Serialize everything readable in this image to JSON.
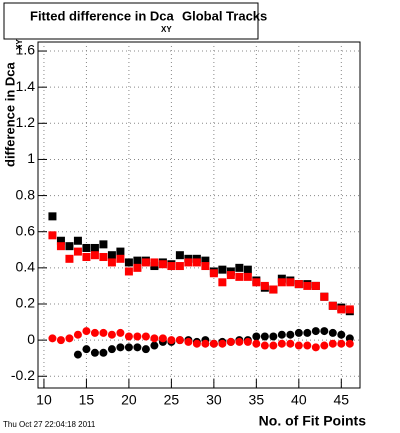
{
  "chart_data": {
    "type": "scatter",
    "title": "Fitted difference in Dca",
    "title_subscript": "XY",
    "title_suffix": "Global Tracks",
    "y_label": "difference in Dca",
    "y_label_subscript": "XY",
    "x_label": "No. of Fit Points",
    "timestamp": "Thu Oct 27 22:04:18 2011",
    "x": [
      11,
      12,
      13,
      14,
      15,
      16,
      17,
      18,
      19,
      20,
      21,
      22,
      23,
      24,
      25,
      26,
      27,
      28,
      29,
      30,
      31,
      32,
      33,
      34,
      35,
      36,
      37,
      38,
      39,
      40,
      41,
      42,
      43,
      44,
      45,
      46
    ],
    "series": [
      {
        "color": "#000000",
        "marker": "square",
        "values": [
          0.685,
          0.55,
          0.52,
          0.55,
          0.51,
          0.51,
          0.53,
          0.47,
          0.49,
          0.43,
          0.44,
          0.44,
          0.41,
          0.43,
          0.42,
          0.47,
          0.45,
          0.45,
          0.44,
          0.38,
          0.39,
          0.38,
          0.4,
          0.39,
          0.33,
          0.29,
          0.28,
          0.34,
          0.33,
          0.31,
          0.31,
          0.3,
          0.24,
          0.19,
          0.18,
          0.16
        ]
      },
      {
        "color": "#ff0000",
        "marker": "square",
        "values": [
          0.58,
          0.52,
          0.45,
          0.49,
          0.46,
          0.47,
          0.46,
          0.43,
          0.45,
          0.38,
          0.4,
          0.43,
          0.43,
          0.42,
          0.41,
          0.41,
          0.43,
          0.43,
          0.41,
          0.37,
          0.32,
          0.36,
          0.35,
          0.35,
          0.32,
          0.3,
          0.28,
          0.32,
          0.32,
          0.31,
          0.3,
          0.3,
          0.24,
          0.19,
          0.17,
          0.17
        ]
      },
      {
        "color": "#000000",
        "marker": "circle",
        "values": [
          null,
          null,
          null,
          -0.08,
          -0.05,
          -0.07,
          -0.07,
          -0.05,
          -0.04,
          -0.04,
          -0.04,
          -0.05,
          -0.03,
          -0.01,
          -0.01,
          0.0,
          0.0,
          -0.01,
          0.0,
          -0.02,
          -0.01,
          -0.01,
          0.0,
          0.0,
          0.02,
          0.02,
          0.02,
          0.03,
          0.03,
          0.04,
          0.04,
          0.05,
          0.05,
          0.04,
          0.03,
          0.01
        ]
      },
      {
        "color": "#ff0000",
        "marker": "circle",
        "values": [
          0.01,
          0.0,
          0.01,
          0.03,
          0.05,
          0.04,
          0.04,
          0.03,
          0.04,
          0.02,
          0.02,
          0.02,
          0.01,
          0.01,
          0.0,
          0.0,
          -0.01,
          -0.02,
          -0.02,
          -0.02,
          -0.02,
          -0.01,
          -0.01,
          -0.01,
          -0.02,
          -0.03,
          -0.03,
          -0.02,
          -0.02,
          -0.03,
          -0.03,
          -0.04,
          -0.03,
          -0.02,
          -0.02,
          -0.02
        ]
      }
    ],
    "xlim": [
      9.3,
      47.2
    ],
    "xticks": [
      10,
      15,
      20,
      25,
      30,
      35,
      40,
      45
    ],
    "ylim": [
      -0.265,
      1.65
    ],
    "yticks": [
      -0.2,
      0,
      0.2,
      0.4,
      0.6,
      0.8,
      1,
      1.2,
      1.4,
      1.6
    ],
    "grid": true
  }
}
